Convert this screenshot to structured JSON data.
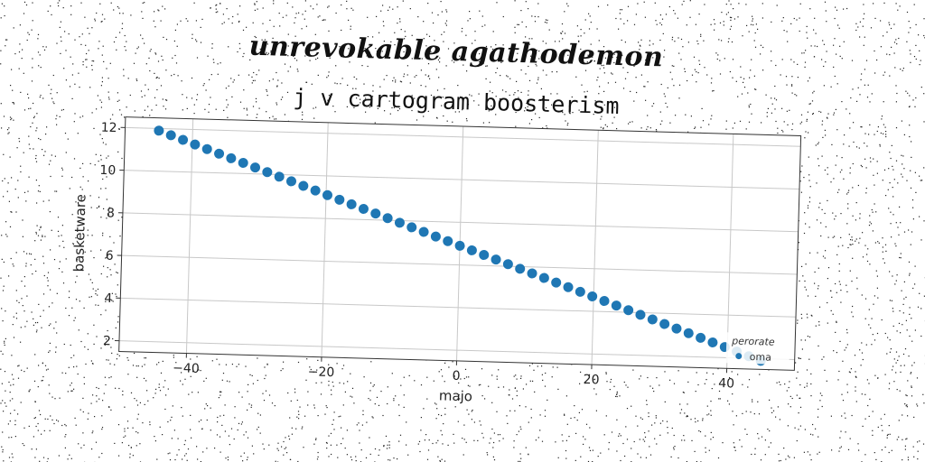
{
  "supertitle": "unrevokable agathodemon",
  "chart_data": {
    "type": "scatter",
    "title": "j v cartogram boosterism",
    "xlabel": "majo",
    "ylabel": "basketware",
    "xlim": [
      -50,
      50
    ],
    "ylim": [
      1.5,
      12.5
    ],
    "x_ticks": [
      -40,
      -20,
      0,
      20,
      40
    ],
    "y_ticks": [
      2,
      4,
      6,
      8,
      10,
      12
    ],
    "grid": true,
    "legend": {
      "title": "perorate",
      "placement": "lower-right"
    },
    "colors": {
      "series": "#1f77b4",
      "grid": "#c8c8c8",
      "axes": "#333333"
    },
    "series": [
      {
        "name": "oma",
        "x": [
          -45.0,
          -43.2,
          -41.4,
          -39.6,
          -37.8,
          -36.0,
          -34.2,
          -32.4,
          -30.6,
          -28.8,
          -27.0,
          -25.2,
          -23.4,
          -21.6,
          -19.8,
          -18.0,
          -16.2,
          -14.4,
          -12.6,
          -10.8,
          -9.0,
          -7.2,
          -5.4,
          -3.6,
          -1.8,
          0.0,
          1.8,
          3.6,
          5.4,
          7.2,
          9.0,
          10.8,
          12.6,
          14.4,
          16.2,
          18.0,
          19.8,
          21.6,
          23.4,
          25.2,
          27.0,
          28.8,
          30.6,
          32.4,
          34.2,
          36.0,
          37.8,
          39.6,
          41.4,
          43.2,
          45.0
        ],
        "y": [
          11.9,
          11.7,
          11.5,
          11.3,
          11.1,
          10.9,
          10.7,
          10.5,
          10.3,
          10.1,
          9.9,
          9.7,
          9.5,
          9.3,
          9.1,
          8.9,
          8.7,
          8.5,
          8.3,
          8.1,
          7.9,
          7.7,
          7.5,
          7.3,
          7.1,
          6.9,
          6.7,
          6.5,
          6.3,
          6.1,
          5.9,
          5.7,
          5.5,
          5.3,
          5.1,
          4.9,
          4.7,
          4.5,
          4.3,
          4.1,
          3.9,
          3.7,
          3.5,
          3.3,
          3.1,
          2.9,
          2.7,
          2.5,
          2.3,
          2.1,
          1.9
        ]
      }
    ]
  }
}
